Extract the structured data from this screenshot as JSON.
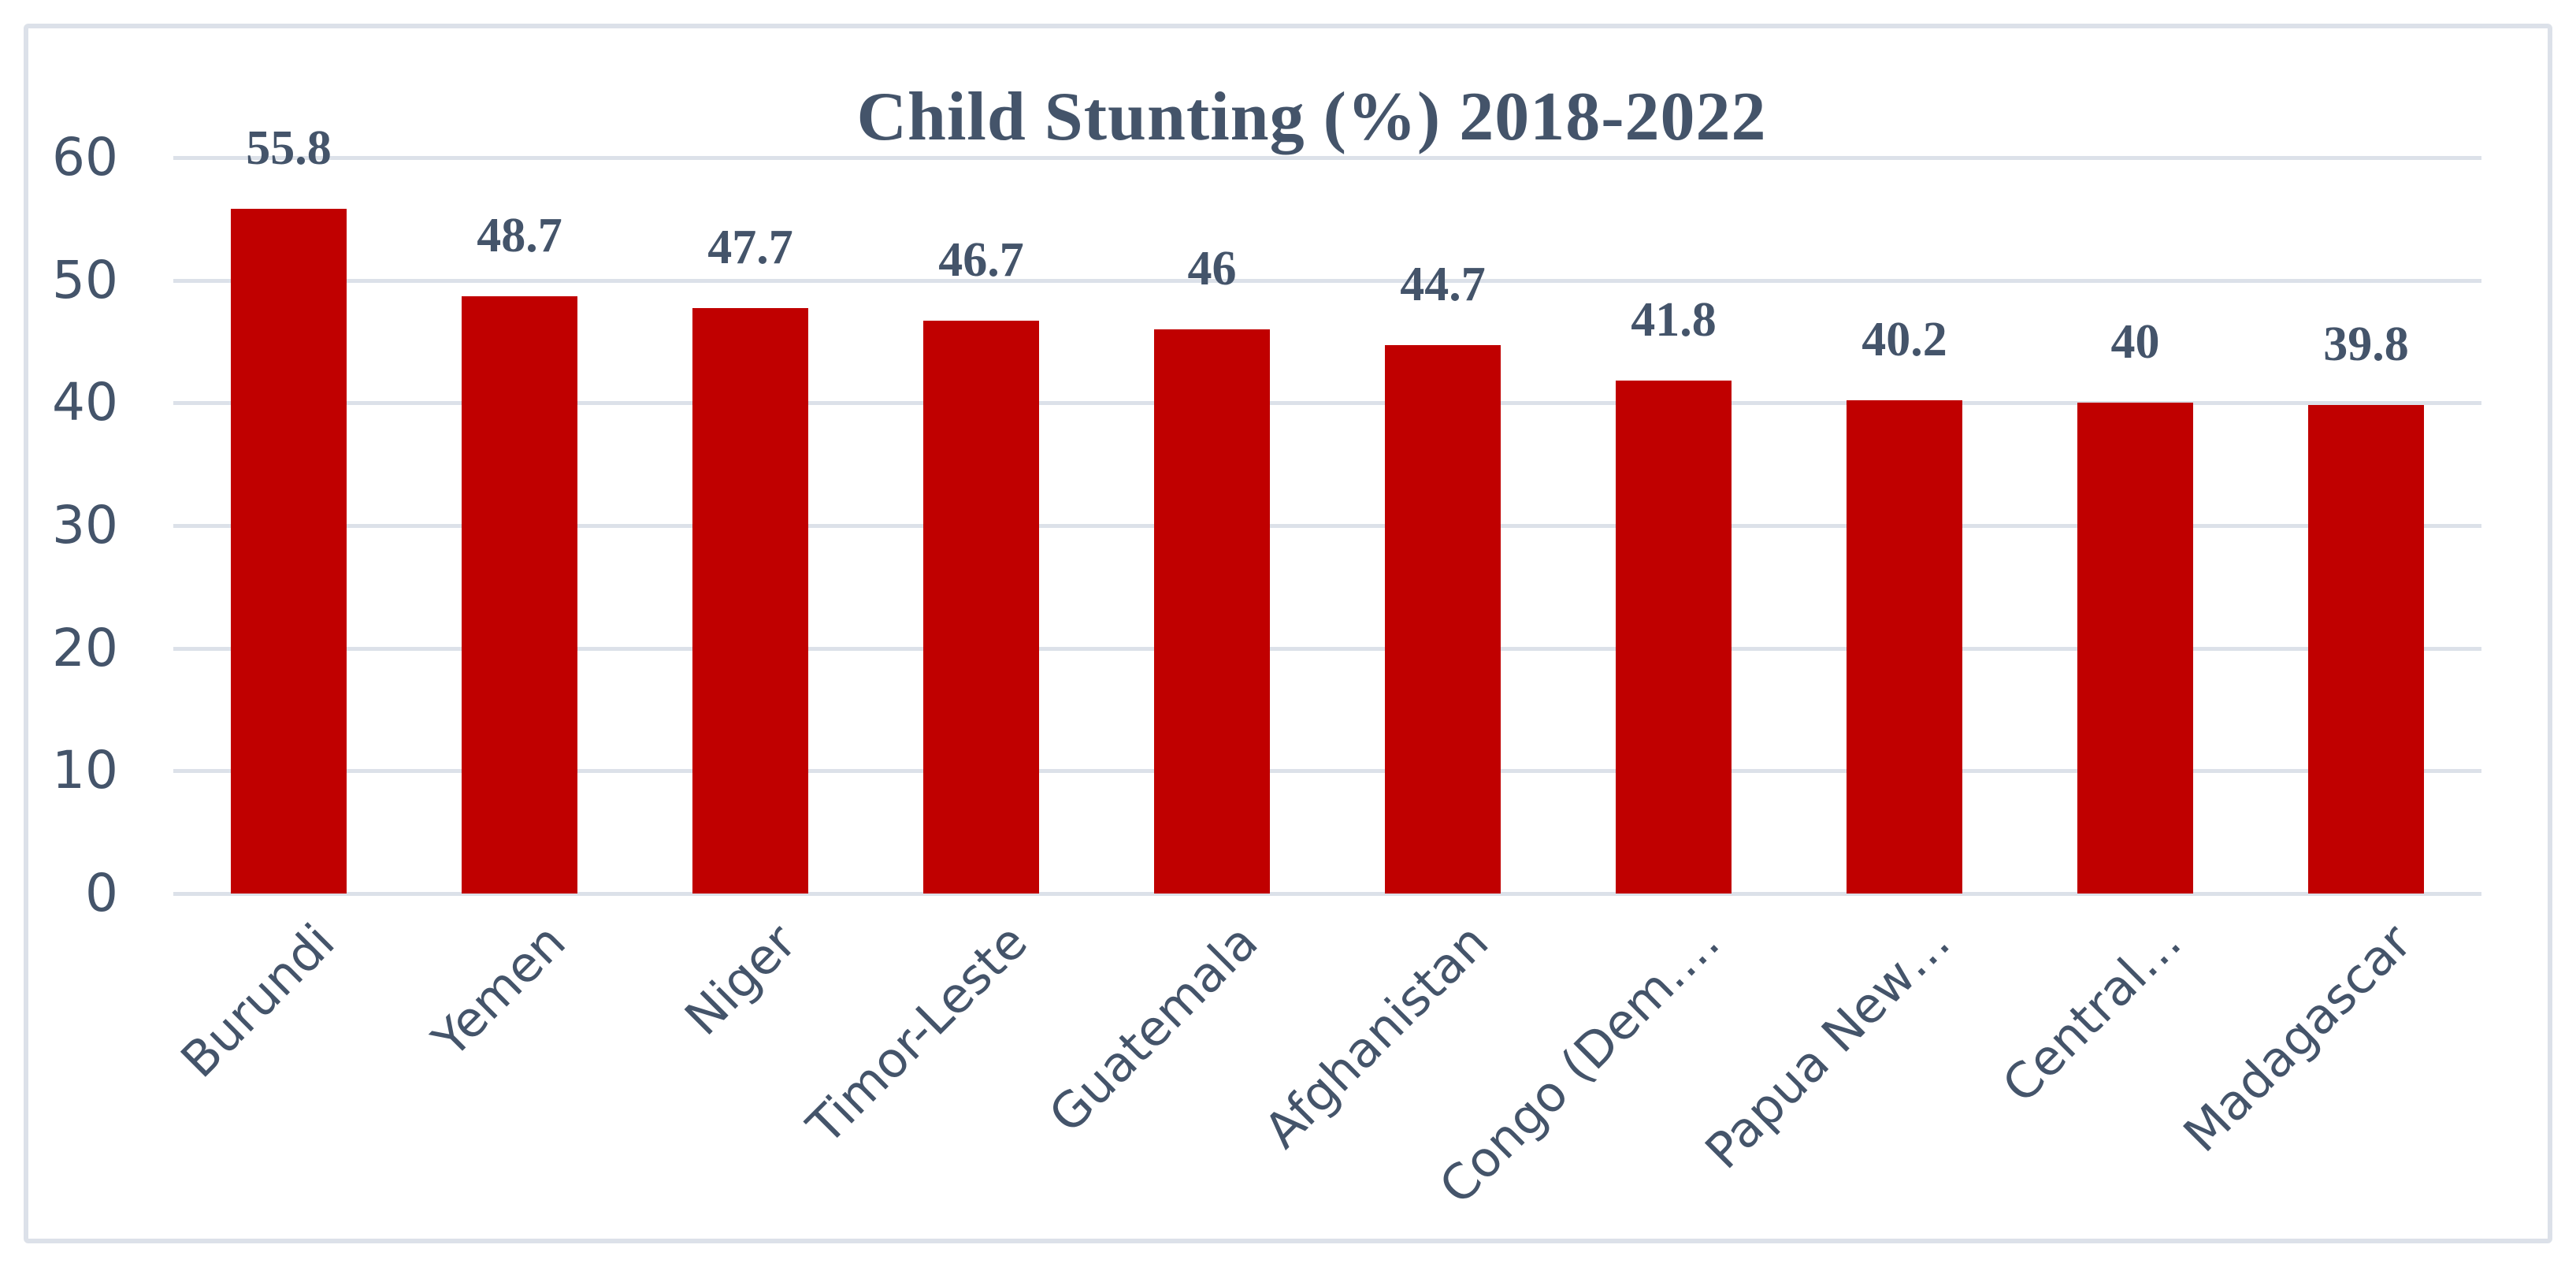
{
  "chart_data": {
    "type": "bar",
    "title": "Child Stunting (%) 2018-2022",
    "categories": [
      "Burundi",
      "Yemen",
      "Niger",
      "Timor-Leste",
      "Guatemala",
      "Afghanistan",
      "Congo (Dem.…",
      "Papua New…",
      "Central…",
      "Madagascar"
    ],
    "values": [
      55.8,
      48.7,
      47.7,
      46.7,
      46,
      44.7,
      41.8,
      40.2,
      40,
      39.8
    ],
    "value_labels": [
      "55.8",
      "48.7",
      "47.7",
      "46.7",
      "46",
      "44.7",
      "41.8",
      "40.2",
      "40",
      "39.8"
    ],
    "yticks": [
      60,
      50,
      40,
      30,
      20,
      10,
      0
    ],
    "ylim": [
      0,
      60
    ],
    "grid": true,
    "legend": "none",
    "colors": {
      "bar": "#C00000",
      "text": "#44546A",
      "gridline": "#DCE1E9",
      "frame_border": "#DCE1E9",
      "background": "#FFFFFF"
    }
  }
}
